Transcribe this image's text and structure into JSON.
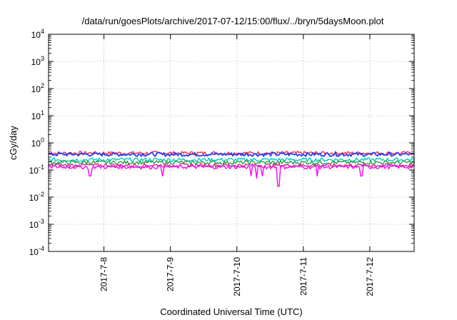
{
  "chart_data": {
    "type": "line",
    "title": "/data/run/goesPlots/archive/2017-07-12/15:00/flux/../bryn/5daysMoon.plot",
    "xlabel": "Coordinated Universal Time (UTC)",
    "ylabel": "cGy/day",
    "y_scale": "log",
    "ylim": [
      0.0001,
      10000
    ],
    "xlim": [
      "2017-07-07T04:00",
      "2017-07-12T16:00"
    ],
    "y_ticks": [
      {
        "value": 0.0001,
        "base": "10",
        "exp": "-4"
      },
      {
        "value": 0.001,
        "base": "10",
        "exp": "-3"
      },
      {
        "value": 0.01,
        "base": "10",
        "exp": "-2"
      },
      {
        "value": 0.1,
        "base": "10",
        "exp": "-1"
      },
      {
        "value": 1,
        "base": "10",
        "exp": "0"
      },
      {
        "value": 10,
        "base": "10",
        "exp": "1"
      },
      {
        "value": 100,
        "base": "10",
        "exp": "2"
      },
      {
        "value": 1000,
        "base": "10",
        "exp": "3"
      },
      {
        "value": 10000,
        "base": "10",
        "exp": "4"
      }
    ],
    "x_ticks": [
      {
        "value": "2017-07-08T00:00",
        "label": "2017-7-8"
      },
      {
        "value": "2017-07-09T00:00",
        "label": "2017-7-9"
      },
      {
        "value": "2017-07-10T00:00",
        "label": "2017-7-10"
      },
      {
        "value": "2017-07-11T00:00",
        "label": "2017-7-11"
      },
      {
        "value": "2017-07-12T00:00",
        "label": "2017-7-12"
      }
    ],
    "grid": true,
    "legend": "none",
    "series": [
      {
        "color": "#ff2a2a",
        "base": 0.42,
        "dips": [],
        "values_note": ""
      },
      {
        "color": "#2a3cff",
        "base": 0.38,
        "dips": []
      },
      {
        "color": "#00c8c8",
        "base": 0.24,
        "dips": []
      },
      {
        "color": "#26a040",
        "base": 0.19,
        "dips": []
      },
      {
        "color": "#c0307a",
        "base": 0.15,
        "dips": []
      },
      {
        "color": "#ff00ff",
        "base": 0.13,
        "dips": [
          {
            "x": "2017-07-07T19:00",
            "y": 0.06
          },
          {
            "x": "2017-07-08T21:00",
            "y": 0.06
          },
          {
            "x": "2017-07-10T05:00",
            "y": 0.06
          },
          {
            "x": "2017-07-10T07:00",
            "y": 0.05
          },
          {
            "x": "2017-07-10T09:00",
            "y": 0.06
          },
          {
            "x": "2017-07-10T15:00",
            "y": 0.025
          },
          {
            "x": "2017-07-11T05:00",
            "y": 0.06
          },
          {
            "x": "2017-07-11T21:00",
            "y": 0.06
          }
        ]
      }
    ]
  }
}
